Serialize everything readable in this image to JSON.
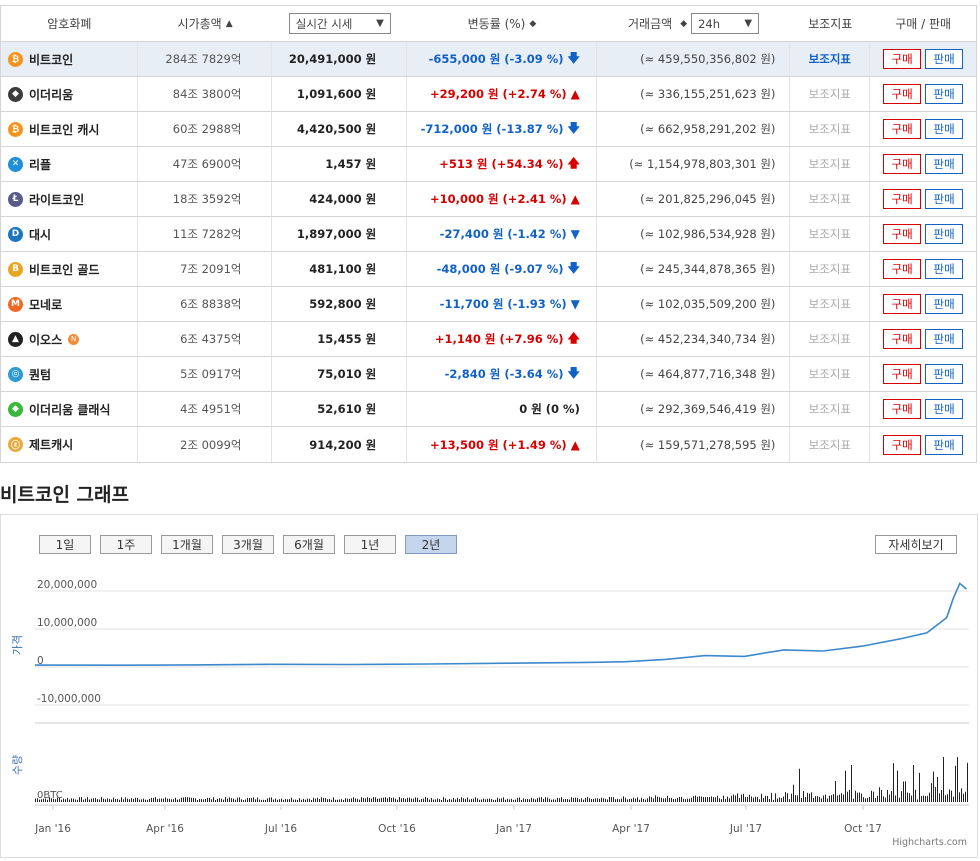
{
  "table": {
    "headers": {
      "name": "암호화폐",
      "cap": "시가총액",
      "price_select": "실시간 시세",
      "chg": "변동률 (%)",
      "vol": "거래금액",
      "vol_select": "24h",
      "ind": "보조지표",
      "trade": "구매 / 판매"
    },
    "buy_label": "구매",
    "sell_label": "판매",
    "rows": [
      {
        "name": "비트코인",
        "icon": "bitcoin-icon",
        "icon_char": "₿",
        "color": "#f7931a",
        "cap": "284조 7829억",
        "price": "20,491,000 원",
        "chg": "-655,000 원 (-3.09 %)",
        "dir": "dn",
        "arrow": "🡇",
        "vol": "(≈ 459,550,356,802 원)",
        "ind": "보조지표"
      },
      {
        "name": "이더리움",
        "icon": "ethereum-icon",
        "icon_char": "◆",
        "color": "#3c3c3d",
        "cap": "84조 3800억",
        "price": "1,091,600 원",
        "chg": "+29,200 원 (+2.74 %)",
        "dir": "up",
        "arrow": "▲",
        "vol": "(≈ 336,155,251,623 원)",
        "ind": "보조지표"
      },
      {
        "name": "비트코인 캐시",
        "icon": "bitcoin-cash-icon",
        "icon_char": "₿",
        "color": "#f7931a",
        "cap": "60조 2988억",
        "price": "4,420,500 원",
        "chg": "-712,000 원 (-13.87 %)",
        "dir": "dn",
        "arrow": "🡇",
        "vol": "(≈ 662,958,291,202 원)",
        "ind": "보조지표"
      },
      {
        "name": "리플",
        "icon": "ripple-icon",
        "icon_char": "✕",
        "color": "#1e8fd8",
        "cap": "47조 6900억",
        "price": "1,457 원",
        "chg": "+513 원 (+54.34 %)",
        "dir": "up",
        "arrow": "🡅",
        "vol": "(≈ 1,154,978,803,301 원)",
        "ind": "보조지표"
      },
      {
        "name": "라이트코인",
        "icon": "litecoin-icon",
        "icon_char": "Ł",
        "color": "#5a5a8a",
        "cap": "18조 3592억",
        "price": "424,000 원",
        "chg": "+10,000 원 (+2.41 %)",
        "dir": "up",
        "arrow": "▲",
        "vol": "(≈ 201,825,296,045 원)",
        "ind": "보조지표"
      },
      {
        "name": "대시",
        "icon": "dash-icon",
        "icon_char": "D",
        "color": "#1c75bc",
        "cap": "11조 7282억",
        "price": "1,897,000 원",
        "chg": "-27,400 원 (-1.42 %)",
        "dir": "dn",
        "arrow": "▼",
        "vol": "(≈ 102,986,534,928 원)",
        "ind": "보조지표"
      },
      {
        "name": "비트코인 골드",
        "icon": "bitcoin-gold-icon",
        "icon_char": "B",
        "color": "#e8a520",
        "cap": "7조 2091억",
        "price": "481,100 원",
        "chg": "-48,000 원 (-9.07 %)",
        "dir": "dn",
        "arrow": "🡇",
        "vol": "(≈ 245,344,878,365 원)",
        "ind": "보조지표"
      },
      {
        "name": "모네로",
        "icon": "monero-icon",
        "icon_char": "M",
        "color": "#f26822",
        "cap": "6조 8838억",
        "price": "592,800 원",
        "chg": "-11,700 원 (-1.93 %)",
        "dir": "dn",
        "arrow": "▼",
        "vol": "(≈ 102,035,509,200 원)",
        "ind": "보조지표"
      },
      {
        "name": "이오스",
        "icon": "eos-icon",
        "icon_char": "▲",
        "color": "#222222",
        "cap": "6조 4375억",
        "price": "15,455 원",
        "chg": "+1,140 원 (+7.96 %)",
        "dir": "up",
        "arrow": "🡅",
        "vol": "(≈ 452,234,340,734 원)",
        "ind": "보조지표",
        "badge": "N"
      },
      {
        "name": "퀀텀",
        "icon": "qtum-icon",
        "icon_char": "◎",
        "color": "#2e9ad0",
        "cap": "5조 0917억",
        "price": "75,010 원",
        "chg": "-2,840 원 (-3.64 %)",
        "dir": "dn",
        "arrow": "🡇",
        "vol": "(≈ 464,877,716,348 원)",
        "ind": "보조지표"
      },
      {
        "name": "이더리움 클래식",
        "icon": "ethereum-classic-icon",
        "icon_char": "◆",
        "color": "#3ab83a",
        "cap": "4조 4951억",
        "price": "52,610 원",
        "chg": "0 원 (0 %)",
        "dir": "flat",
        "arrow": "",
        "vol": "(≈ 292,369,546,419 원)",
        "ind": "보조지표"
      },
      {
        "name": "제트캐시",
        "icon": "zcash-icon",
        "icon_char": "ⓩ",
        "color": "#e5a93d",
        "cap": "2조 0099억",
        "price": "914,200 원",
        "chg": "+13,500 원 (+1.49 %)",
        "dir": "up",
        "arrow": "▲",
        "vol": "(≈ 159,571,278,595 원)",
        "ind": "보조지표"
      }
    ]
  },
  "graph": {
    "title": "비트코인 그래프",
    "ranges": [
      "1일",
      "1주",
      "1개월",
      "3개월",
      "6개월",
      "1년",
      "2년"
    ],
    "active_range": "2년",
    "detail_label": "자세히보기",
    "credit": "Highcharts.com"
  },
  "chart_data": {
    "type": "line",
    "ylabel": "가격",
    "volume_label": "수량",
    "volume_zero_label": "0BTC",
    "yticks": [
      "20,000,000",
      "10,000,000",
      "0",
      "-10,000,000"
    ],
    "xticks": [
      "Jan '16",
      "Apr '16",
      "Jul '16",
      "Oct '16",
      "Jan '17",
      "Apr '17",
      "Jul '17",
      "Oct '17"
    ],
    "colors": {
      "line": "#3d88cc",
      "volume": "#222222"
    },
    "x": [
      "2016-01",
      "2016-03",
      "2016-05",
      "2016-07",
      "2016-09",
      "2016-11",
      "2017-01",
      "2017-03",
      "2017-04",
      "2017-05",
      "2017-06",
      "2017-07",
      "2017-08",
      "2017-09",
      "2017-10",
      "2017-11",
      "2017-11-20",
      "2017-12-05",
      "2017-12-10",
      "2017-12-15",
      "2017-12-20"
    ],
    "series": [
      {
        "values": [
          500000,
          480000,
          550000,
          700000,
          650000,
          780000,
          1000000,
          1200000,
          1400000,
          2000000,
          3000000,
          2800000,
          4500000,
          4200000,
          5500000,
          7500000,
          9000000,
          13000000,
          18000000,
          22000000,
          20491000
        ]
      }
    ]
  }
}
